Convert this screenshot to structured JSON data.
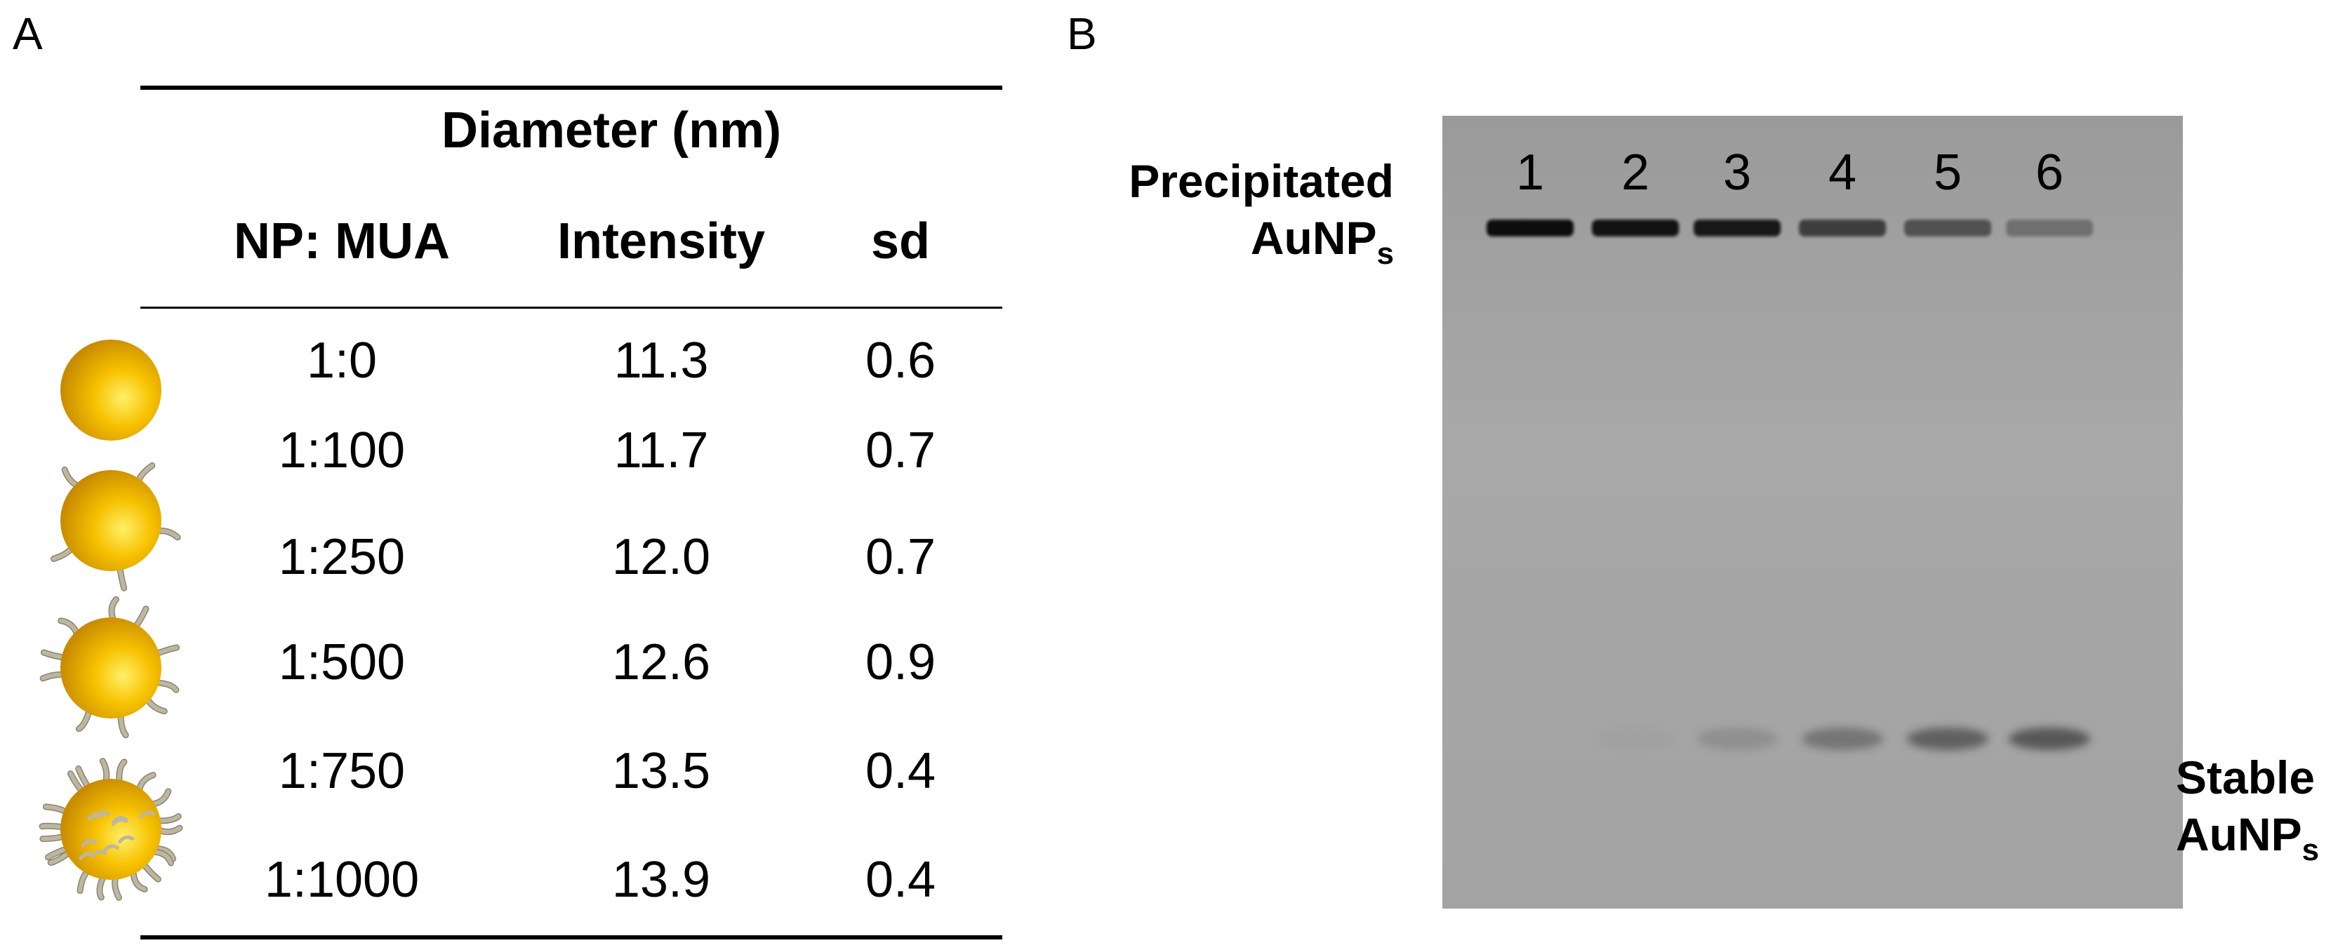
{
  "panel_a": {
    "label": "A",
    "group_header": "Diameter (nm)",
    "columns": [
      "NP: MUA",
      "Intensity",
      "sd"
    ],
    "rows": [
      {
        "ratio": "1:0",
        "intensity": "11.3",
        "sd": "0.6"
      },
      {
        "ratio": "1:100",
        "intensity": "11.7",
        "sd": "0.7"
      },
      {
        "ratio": "1:250",
        "intensity": "12.0",
        "sd": "0.7"
      },
      {
        "ratio": "1:500",
        "intensity": "12.6",
        "sd": "0.9"
      },
      {
        "ratio": "1:750",
        "intensity": "13.5",
        "sd": "0.4"
      },
      {
        "ratio": "1:1000",
        "intensity": "13.9",
        "sd": "0.4"
      }
    ],
    "icons": [
      "bare-gold-nanoparticle-icon",
      "sparse-mua-nanoparticle-icon",
      "medium-mua-nanoparticle-icon",
      "dense-mua-nanoparticle-icon"
    ]
  },
  "panel_b": {
    "label": "B",
    "lanes": [
      "1",
      "2",
      "3",
      "4",
      "5",
      "6"
    ],
    "top_label": {
      "line1": "Precipitated",
      "line2": "AuNP",
      "subscript": "s"
    },
    "bottom_label": {
      "line1": "Stable",
      "line2": "AuNP",
      "subscript": "s"
    },
    "precipitated_band_intensity": [
      1.0,
      0.95,
      0.9,
      0.6,
      0.45,
      0.2
    ],
    "stable_band_intensity": [
      0.0,
      0.05,
      0.25,
      0.55,
      0.8,
      0.9
    ],
    "colors": {
      "gel": "#a6a6a6",
      "band": "#111111",
      "gold": "#f5b800",
      "ligand": "#bdb6a0"
    }
  }
}
